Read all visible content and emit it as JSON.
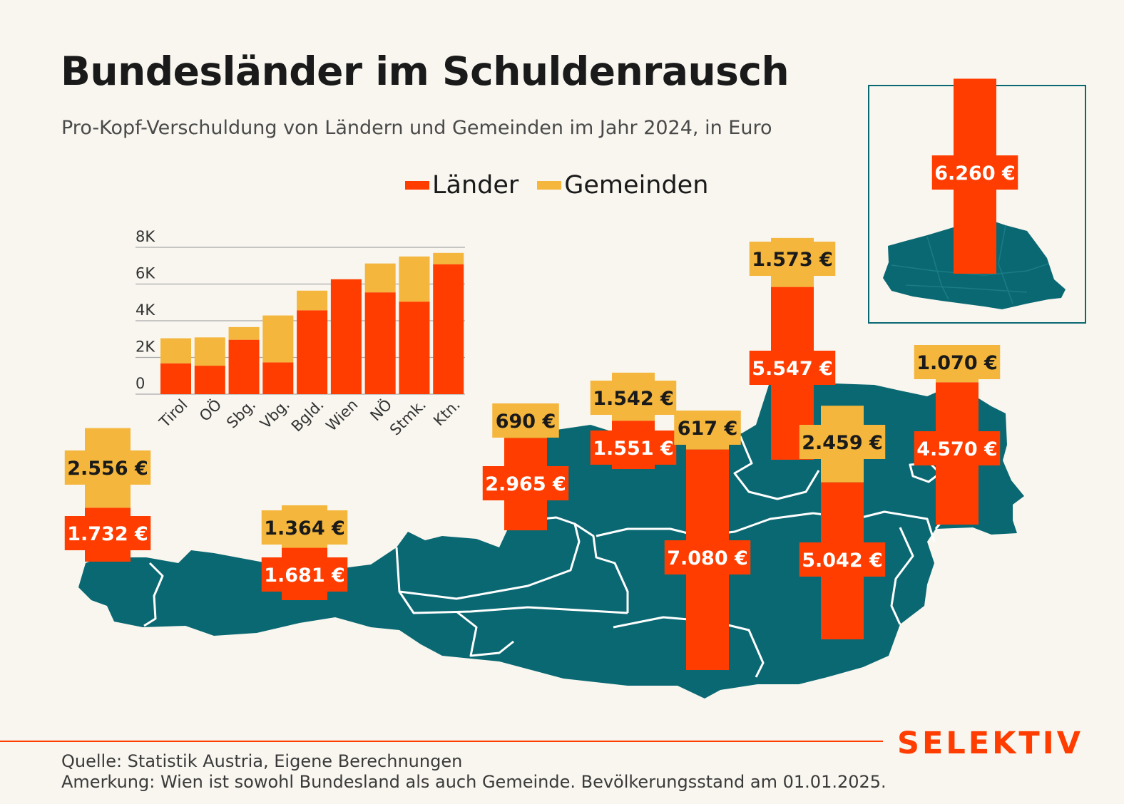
{
  "header": {
    "title": "Bundesländer im Schuldenrausch",
    "subtitle": "Pro-Kopf-Verschuldung von Ländern und Gemeinden im Jahr 2024, in Euro"
  },
  "colors": {
    "laender": "#ff3d00",
    "gemeinden": "#f4b63c",
    "map": "#0a6872",
    "background": "#f8f6ef"
  },
  "chart_data": {
    "type": "bar",
    "stacked": true,
    "categories": [
      "Tirol",
      "OÖ",
      "Sbg.",
      "Vbg.",
      "Bgld.",
      "Wien",
      "NÖ",
      "Stmk.",
      "Ktn."
    ],
    "series": [
      {
        "name": "Länder",
        "values": [
          1681,
          1551,
          2965,
          1732,
          4570,
          6260,
          5547,
          5042,
          7080
        ]
      },
      {
        "name": "Gemeinden",
        "values": [
          1364,
          1542,
          690,
          2556,
          1070,
          0,
          1573,
          2459,
          617
        ]
      }
    ],
    "ylim": [
      0,
      8000
    ],
    "yticks": [
      0,
      2000,
      4000,
      6000,
      8000
    ],
    "ytick_labels": [
      "0",
      "2K",
      "4K",
      "6K",
      "8K"
    ],
    "grid": true,
    "legend": "top"
  },
  "legend": {
    "laender_label": "Länder",
    "gemeinden_label": "Gemeinden"
  },
  "map_labels": [
    {
      "id": "vbg",
      "laender": "1.732 €",
      "gemeinden": "2.556 €",
      "laender_value": 1732,
      "gemeinden_value": 2556
    },
    {
      "id": "tirol",
      "laender": "1.681 €",
      "gemeinden": "1.364 €",
      "laender_value": 1681,
      "gemeinden_value": 1364
    },
    {
      "id": "sbg",
      "laender": "2.965 €",
      "gemeinden": "690 €",
      "laender_value": 2965,
      "gemeinden_value": 690
    },
    {
      "id": "ooe",
      "laender": "1.551 €",
      "gemeinden": "1.542 €",
      "laender_value": 1551,
      "gemeinden_value": 1542
    },
    {
      "id": "ktn",
      "laender": "7.080 €",
      "gemeinden": "617 €",
      "laender_value": 7080,
      "gemeinden_value": 617
    },
    {
      "id": "noe",
      "laender": "5.547 €",
      "gemeinden": "1.573 €",
      "laender_value": 5547,
      "gemeinden_value": 1573
    },
    {
      "id": "stmk",
      "laender": "5.042 €",
      "gemeinden": "2.459 €",
      "laender_value": 5042,
      "gemeinden_value": 2459
    },
    {
      "id": "bgld",
      "laender": "4.570 €",
      "gemeinden": "1.070 €",
      "laender_value": 4570,
      "gemeinden_value": 1070
    },
    {
      "id": "wien",
      "laender": "6.260 €",
      "laender_value": 6260
    }
  ],
  "footer": {
    "brand": "SELEKTIV",
    "source": "Quelle: Statistik Austria, Eigene Berechnungen",
    "note": "Amerkung: Wien ist sowohl Bundesland als auch Gemeinde. Bevölkerungsstand am 01.01.2025."
  }
}
